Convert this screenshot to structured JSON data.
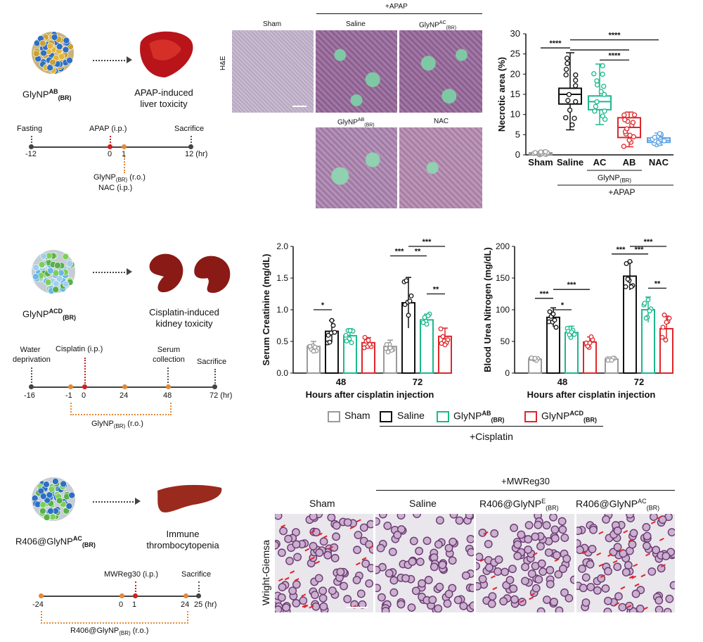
{
  "panel_a": {
    "np_label": "GlyNP",
    "np_sup": "AB",
    "np_sub": "(BR)",
    "organ_label": "APAP-induced liver toxicity",
    "organ_line1": "APAP-induced",
    "organ_line2": "liver toxicity",
    "timeline": {
      "events_top": [
        "Fasting",
        "APAP (i.p.)",
        "Sacrifice"
      ],
      "ticks": [
        "-12",
        "0",
        "1",
        "12 (hr)"
      ],
      "below_1": "GlyNP",
      "below_1_sub": "(BR)",
      "below_1_route": "(r.o.)",
      "below_2": "NAC (i.p.)"
    },
    "micro": {
      "header_group": "+APAP",
      "row_label": "H&E",
      "cols": [
        "Sham",
        "Saline",
        "GlyNP"
      ],
      "col3_sup": "AC",
      "col3_sub": "(BR)",
      "bottom": [
        "GlyNP",
        "NAC"
      ],
      "bottom1_sup": "AB",
      "bottom1_sub": "(BR)"
    },
    "chart": {
      "ylabel": "Necrotic area (%)",
      "xlabels": [
        "Sham",
        "Saline",
        "AC",
        "AB",
        "NAC"
      ],
      "group_label": "GlyNP",
      "group_sub": "(BR)",
      "treat_label": "+APAP",
      "yticks": [
        "0",
        "5",
        "10",
        "15",
        "20",
        "25",
        "30"
      ],
      "sig": [
        "****",
        "****",
        "****"
      ]
    }
  },
  "panel_b": {
    "np_label": "GlyNP",
    "np_sup": "ACD",
    "np_sub": "(BR)",
    "organ_line1": "Cisplatin-induced",
    "organ_line2": "kidney toxicity",
    "timeline": {
      "events_top": [
        "Water",
        "deprivation",
        "Cisplatin (i.p.)",
        "Serum",
        "collection",
        "Sacrifice"
      ],
      "ticks": [
        "-16",
        "-1",
        "0",
        "24",
        "48",
        "72 (hr)"
      ],
      "below": "GlyNP",
      "below_sub": "(BR)",
      "below_route": "(r.o.)"
    },
    "chart1": {
      "ylabel": "Serum Creatinine (mg/dL)",
      "xlabel": "Hours after cisplatin injection",
      "groups": [
        "48",
        "72"
      ],
      "yticks": [
        "0.0",
        "0.5",
        "1.0",
        "1.5",
        "2.0"
      ],
      "sig": [
        "*",
        "***",
        "**",
        "***",
        "**"
      ]
    },
    "chart2": {
      "ylabel": "Blood Urea Nitrogen (mg/dL)",
      "xlabel": "Hours after cisplatin injection",
      "groups": [
        "48",
        "72"
      ],
      "yticks": [
        "0",
        "50",
        "100",
        "150",
        "200"
      ],
      "sig": [
        "***",
        "*",
        "***",
        "***",
        "***",
        "***",
        "**"
      ]
    },
    "legend": {
      "items": [
        "Sham",
        "Saline",
        "GlyNP",
        "GlyNP"
      ],
      "sup": [
        "",
        "",
        "AB",
        "ACD"
      ],
      "sub": [
        "",
        "",
        "(BR)",
        "(BR)"
      ],
      "treat": "+Cisplatin"
    }
  },
  "panel_c": {
    "np_label": "R406@GlyNP",
    "np_sup": "AC",
    "np_sub": "(BR)",
    "organ_line1": "Immune",
    "organ_line2": "thrombocytopenia",
    "timeline": {
      "events_top": [
        "MWReg30 (i.p.)",
        "Sacrifice"
      ],
      "ticks": [
        "-24",
        "0",
        "1",
        "24",
        "25 (hr)"
      ],
      "below": "R406@GlyNP",
      "below_sub": "(BR)",
      "below_route": "(r.o.)"
    },
    "micro": {
      "group": "+MWReg30",
      "row_label": "Wright-Giemsa",
      "cols": [
        "Sham",
        "Saline",
        "R406@GlyNP",
        "R406@GlyNP"
      ],
      "col_sup": [
        "",
        "",
        "E",
        "AC"
      ],
      "col_sub": [
        "",
        "",
        "(BR)",
        "(BR)"
      ]
    }
  },
  "colors": {
    "sham": "#9a9a9a",
    "saline": "#111111",
    "ac": "#1bb98c",
    "ab": "#e0262a",
    "nac": "#5fa3e6",
    "ab_green": "#1bb98c",
    "acd_red": "#e0262a"
  },
  "chart_data": [
    {
      "type": "box",
      "ylabel": "Necrotic area (%)",
      "categories": [
        "Sham",
        "Saline",
        "AC",
        "AB",
        "NAC"
      ],
      "ylim": [
        0,
        30
      ],
      "series": [
        {
          "name": "Sham",
          "min": 0.0,
          "q1": 0.1,
          "median": 0.3,
          "q3": 0.5,
          "max": 0.8
        },
        {
          "name": "Saline",
          "min": 6.2,
          "q1": 12.6,
          "median": 15.0,
          "q3": 16.5,
          "max": 25.3
        },
        {
          "name": "AC",
          "min": 7.5,
          "q1": 11.2,
          "median": 13.2,
          "q3": 14.6,
          "max": 22.5
        },
        {
          "name": "AB",
          "min": 2.0,
          "q1": 4.3,
          "median": 6.8,
          "q3": 9.2,
          "max": 10.6
        },
        {
          "name": "NAC",
          "min": 2.4,
          "q1": 3.1,
          "median": 3.6,
          "q3": 4.2,
          "max": 5.4
        }
      ]
    },
    {
      "type": "bar",
      "ylabel": "Serum Creatinine (mg/dL)",
      "xlabel": "Hours after cisplatin injection",
      "categories": [
        "48",
        "72"
      ],
      "ylim": [
        0,
        2.0
      ],
      "series": [
        {
          "name": "Sham",
          "values": [
            0.42,
            0.42
          ],
          "err": [
            0.08,
            0.1
          ]
        },
        {
          "name": "Saline",
          "values": [
            0.66,
            1.11
          ],
          "err": [
            0.17,
            0.4
          ]
        },
        {
          "name": "GlyNP AB (BR)",
          "values": [
            0.59,
            0.84
          ],
          "err": [
            0.11,
            0.09
          ]
        },
        {
          "name": "GlyNP ACD (BR)",
          "values": [
            0.48,
            0.58
          ],
          "err": [
            0.08,
            0.13
          ]
        }
      ]
    },
    {
      "type": "bar",
      "ylabel": "Blood Urea Nitrogen (mg/dL)",
      "xlabel": "Hours after cisplatin injection",
      "categories": [
        "48",
        "72"
      ],
      "ylim": [
        0,
        200
      ],
      "series": [
        {
          "name": "Sham",
          "values": [
            22,
            22
          ],
          "err": [
            2,
            2
          ]
        },
        {
          "name": "Saline",
          "values": [
            88,
            153
          ],
          "err": [
            15,
            22
          ]
        },
        {
          "name": "GlyNP AB (BR)",
          "values": [
            64,
            100
          ],
          "err": [
            10,
            20
          ]
        },
        {
          "name": "GlyNP ACD (BR)",
          "values": [
            49,
            70
          ],
          "err": [
            8,
            20
          ]
        }
      ]
    }
  ]
}
